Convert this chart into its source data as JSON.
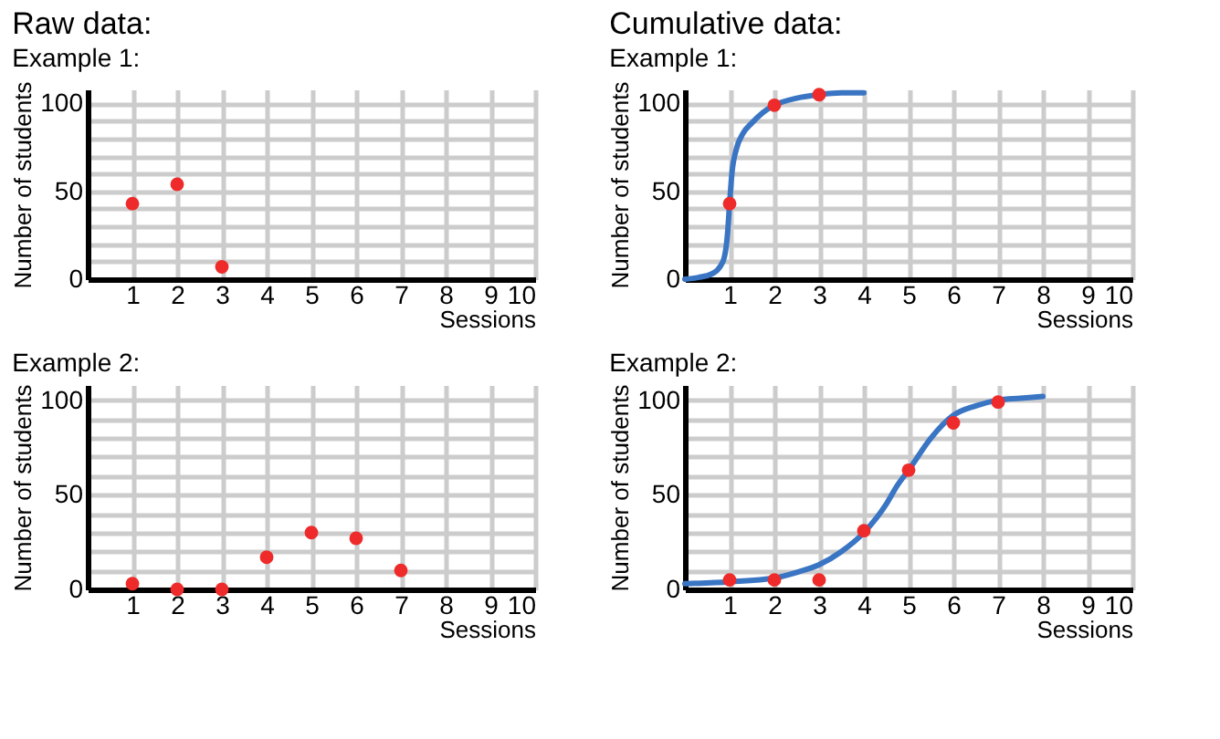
{
  "chart_data": [
    {
      "type": "scatter",
      "title": "Raw data:",
      "subtitle": "Example 1:",
      "xlabel": "Sessions",
      "ylabel": "Number of students",
      "xlim": [
        0,
        10
      ],
      "ylim": [
        0,
        108
      ],
      "xticks": [
        1,
        2,
        3,
        4,
        5,
        6,
        7,
        8,
        9,
        10
      ],
      "yticks": [
        0,
        {
          "value": 10,
          "label": null
        },
        {
          "value": 20,
          "label": null
        },
        {
          "value": 30,
          "label": null
        },
        {
          "value": 40,
          "label": null
        },
        50,
        {
          "value": 60,
          "label": null
        },
        {
          "value": 70,
          "label": null
        },
        {
          "value": 80,
          "label": null
        },
        {
          "value": 90,
          "label": null
        },
        100
      ],
      "grid": true,
      "series": [
        {
          "type": "scatter",
          "marker": "circle",
          "color": "#ee2a2a",
          "x": [
            1,
            2,
            3
          ],
          "values": [
            43,
            54,
            7
          ]
        }
      ]
    },
    {
      "type": "scatter",
      "title": "Cumulative data:",
      "subtitle": "Example 1:",
      "xlabel": "Sessions",
      "ylabel": "Number of students",
      "xlim": [
        0,
        10
      ],
      "ylim": [
        0,
        108
      ],
      "xticks": [
        1,
        2,
        3,
        4,
        5,
        6,
        7,
        8,
        9,
        10
      ],
      "yticks": [
        0,
        {
          "value": 10,
          "label": null
        },
        {
          "value": 20,
          "label": null
        },
        {
          "value": 30,
          "label": null
        },
        {
          "value": 40,
          "label": null
        },
        50,
        {
          "value": 60,
          "label": null
        },
        {
          "value": 70,
          "label": null
        },
        {
          "value": 80,
          "label": null
        },
        {
          "value": 90,
          "label": null
        },
        100
      ],
      "grid": true,
      "series": [
        {
          "type": "line",
          "marker": "none",
          "color": "#3a75c4",
          "x": [
            0,
            0.3,
            0.6,
            0.85,
            0.95,
            1,
            1.05,
            1.15,
            1.3,
            1.5,
            1.75,
            2,
            2.5,
            3,
            3.5,
            4
          ],
          "values": [
            0,
            1,
            3,
            10,
            25,
            43,
            60,
            74,
            83,
            89,
            95,
            99,
            103,
            105,
            106,
            106
          ]
        },
        {
          "type": "scatter",
          "marker": "circle",
          "color": "#ee2a2a",
          "x": [
            1,
            2,
            3
          ],
          "values": [
            43,
            99,
            105
          ]
        }
      ]
    },
    {
      "type": "scatter",
      "title": "Example 2:",
      "xlabel": "Sessions",
      "ylabel": "Number of students",
      "xlim": [
        0,
        10
      ],
      "ylim": [
        0,
        108
      ],
      "xticks": [
        1,
        2,
        3,
        4,
        5,
        6,
        7,
        8,
        9,
        10
      ],
      "yticks": [
        0,
        {
          "value": 10,
          "label": null
        },
        {
          "value": 20,
          "label": null
        },
        {
          "value": 30,
          "label": null
        },
        {
          "value": 40,
          "label": null
        },
        50,
        {
          "value": 60,
          "label": null
        },
        {
          "value": 70,
          "label": null
        },
        {
          "value": 80,
          "label": null
        },
        {
          "value": 90,
          "label": null
        },
        100
      ],
      "grid": true,
      "series": [
        {
          "type": "scatter",
          "marker": "circle",
          "color": "#ee2a2a",
          "x": [
            1,
            2,
            3,
            4,
            5,
            6,
            7
          ],
          "values": [
            3,
            0,
            0,
            17,
            30,
            27,
            10
          ]
        }
      ]
    },
    {
      "type": "scatter",
      "title": "Example 2:",
      "xlabel": "Sessions",
      "ylabel": "Number of students",
      "xlim": [
        0,
        10
      ],
      "ylim": [
        0,
        108
      ],
      "xticks": [
        1,
        2,
        3,
        4,
        5,
        6,
        7,
        8,
        9,
        10
      ],
      "yticks": [
        0,
        {
          "value": 10,
          "label": null
        },
        {
          "value": 20,
          "label": null
        },
        {
          "value": 30,
          "label": null
        },
        {
          "value": 40,
          "label": null
        },
        50,
        {
          "value": 60,
          "label": null
        },
        {
          "value": 70,
          "label": null
        },
        {
          "value": 80,
          "label": null
        },
        {
          "value": 90,
          "label": null
        },
        100
      ],
      "grid": true,
      "series": [
        {
          "type": "line",
          "marker": "none",
          "color": "#3a75c4",
          "x": [
            0,
            1,
            2,
            2.5,
            3,
            3.5,
            4,
            4.5,
            4.75,
            5,
            5.5,
            6,
            6.5,
            7,
            7.5,
            8
          ],
          "values": [
            3,
            4,
            6,
            9,
            13,
            20,
            30,
            45,
            55,
            63,
            80,
            92,
            97,
            100,
            101,
            102
          ]
        },
        {
          "type": "scatter",
          "marker": "circle",
          "color": "#ee2a2a",
          "x": [
            1,
            2,
            3,
            4,
            5,
            6,
            7
          ],
          "values": [
            5,
            5,
            5,
            31,
            63,
            88,
            99
          ]
        }
      ]
    }
  ]
}
